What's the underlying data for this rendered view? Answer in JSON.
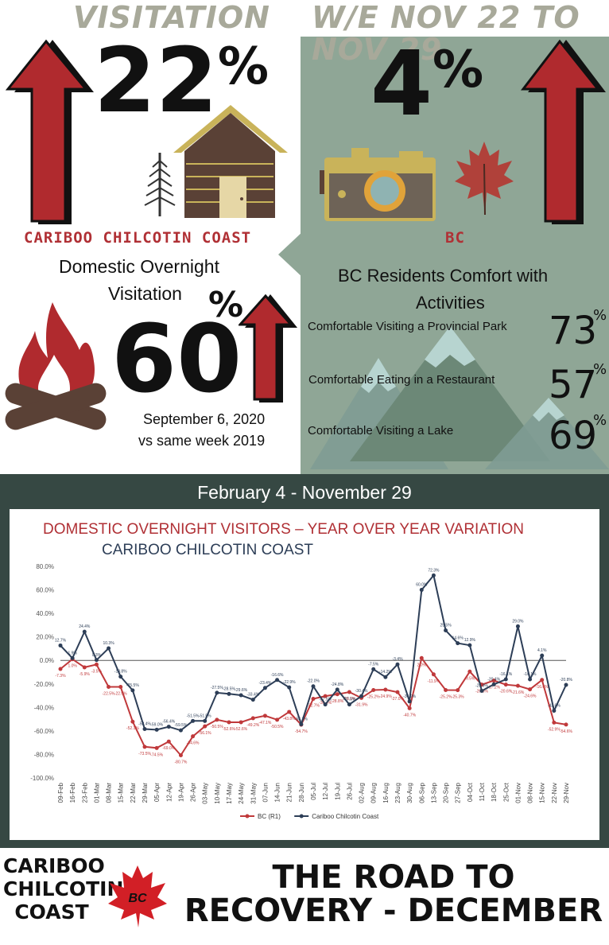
{
  "header": {
    "left_title": "VISITATION",
    "right_title": "W/E NOV 22 TO NOV 29"
  },
  "left_panel": {
    "visitation_value": "22",
    "visitation_unit": "%",
    "visitation_trend": "up",
    "region": "CARIBOO CHILCOTIN COAST",
    "metric_line1": "Domestic Overnight",
    "metric_line2": "Visitation",
    "overnight_value": "60",
    "overnight_unit": "%",
    "overnight_trend": "up",
    "date_line1": "September 6, 2020",
    "date_line2": "vs same week 2019"
  },
  "right_panel": {
    "visitation_value": "4",
    "visitation_unit": "%",
    "visitation_trend": "up",
    "region": "BC",
    "comfort_title_line1": "BC Residents Comfort with",
    "comfort_title_line2": "Activities",
    "comfort_items": [
      {
        "label": "Comfortable Visiting a Provincial Park",
        "value": "73",
        "unit": "%"
      },
      {
        "label": "Comfortable Eating in a Restaurant",
        "value": "57",
        "unit": "%"
      },
      {
        "label": "Comfortable Visiting a Lake",
        "value": "69",
        "unit": "%"
      }
    ]
  },
  "band": {
    "date_range": "February 4 - November 29"
  },
  "colors": {
    "accent_red": "#b03035",
    "navy": "#2d3e57",
    "sage": "#8fa696",
    "dark_green": "#364843",
    "header_gray": "#a8a99a"
  },
  "icons": [
    "arrow-up-icon",
    "cabin-icon",
    "tree-icon",
    "camera-icon",
    "maple-leaf-icon",
    "campfire-icon",
    "mountains-icon"
  ],
  "chart_data": {
    "type": "line",
    "title": "DOMESTIC OVERNIGHT VISITORS – YEAR OVER YEAR VARIATION",
    "subtitle": "CARIBOO CHILCOTIN COAST",
    "xlabel": "",
    "ylabel": "",
    "ylim": [
      -100,
      80
    ],
    "yticks": [
      "80.0%",
      "60.0%",
      "40.0%",
      "20.0%",
      "0.0%",
      "-20.0%",
      "-40.0%",
      "-60.0%",
      "-80.0%",
      "-100.0%"
    ],
    "grid": false,
    "legend": "bottom-center",
    "categories": [
      "09-Feb",
      "16-Feb",
      "23-Feb",
      "01-Mar",
      "08-Mar",
      "15-Mar",
      "22-Mar",
      "29-Mar",
      "05-Apr",
      "12-Apr",
      "19-Apr",
      "26-Apr",
      "03-May",
      "10-May",
      "17-May",
      "24-May",
      "31-May",
      "07-Jun",
      "14-Jun",
      "21-Jun",
      "28-Jun",
      "05-Jul",
      "12-Jul",
      "19-Jul",
      "26-Jul",
      "02-Aug",
      "09-Aug",
      "16-Aug",
      "23-Aug",
      "30-Aug",
      "06-Sep",
      "13-Sep",
      "20-Sep",
      "27-Sep",
      "04-Oct",
      "11-Oct",
      "18-Oct",
      "25-Oct",
      "01-Nov",
      "08-Nov",
      "15-Nov",
      "22-Nov",
      "29-Nov"
    ],
    "series": [
      {
        "name": "BC (R1)",
        "color": "#c0393b",
        "values": [
          -7.3,
          1.0,
          -5.9,
          -3.5,
          -22.5,
          -22.5,
          -52.1,
          -73.5,
          -74.5,
          -69.0,
          -80.7,
          -64.6,
          -56.1,
          -50.5,
          -52.6,
          -52.6,
          -49.2,
          -47.1,
          -50.5,
          -43.8,
          -54.7,
          -32.7,
          -30.4,
          -28.8,
          -26.9,
          -31.9,
          -25.2,
          -24.9,
          -27.0,
          -40.7,
          2.0,
          -11.9,
          -25.2,
          -25.3,
          -9.5,
          -20.6,
          -17.2,
          -20.6,
          -21.6,
          -24.6,
          -16.6,
          -52.9,
          -54.6
        ]
      },
      {
        "name": "Cariboo Chilcotin Coast",
        "color": "#2d3e57",
        "values": [
          12.7,
          1.9,
          24.4,
          0.3,
          10.3,
          -13.8,
          -25.5,
          -58.4,
          -59.0,
          -56.4,
          -59.5,
          -51.5,
          -51.5,
          -27.5,
          -28.5,
          -29.6,
          -33.4,
          -23.4,
          -16.6,
          -22.9,
          -54.3,
          -22.0,
          -37.5,
          -24.8,
          -37.5,
          -30.4,
          -7.5,
          -14.2,
          -3.4,
          -34.9,
          60.0,
          72.3,
          25.5,
          14.6,
          12.9,
          -25.9,
          -20.4,
          -16.1,
          29.0,
          -16.1,
          4.1,
          -42.8,
          -20.8
        ]
      }
    ]
  }
}
